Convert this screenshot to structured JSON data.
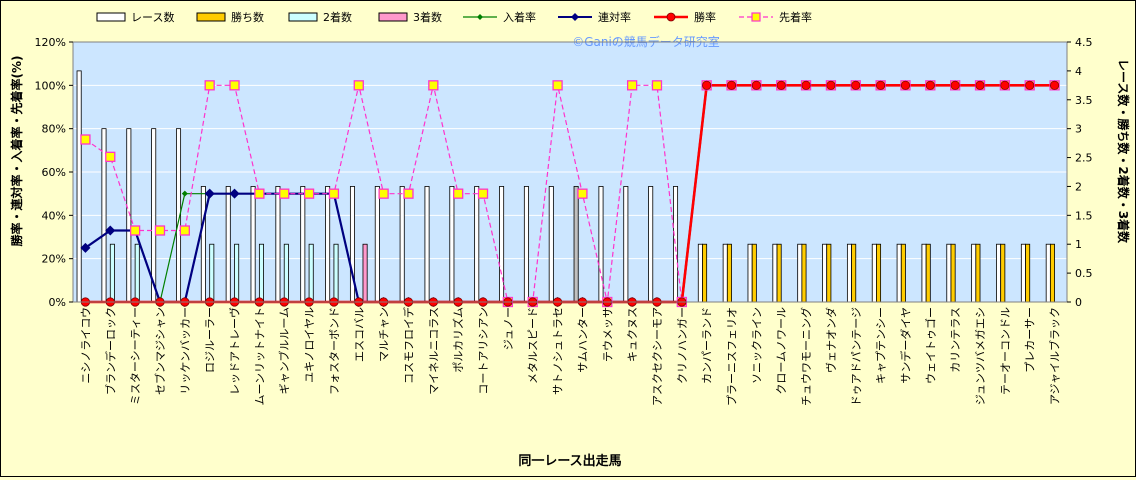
{
  "watermark": "©Ganiの競馬データ研究室",
  "chart_data": {
    "type": "bar",
    "xlabel": "同一レース出走馬",
    "ylabel_left": "勝率・連対率・入着率・先着率(%)",
    "ylabel_right": "レース数・勝ち数・2着数・3着数",
    "ylim_left": [
      0,
      120
    ],
    "ylim_right": [
      0,
      4.5
    ],
    "left_ticks": [
      "0%",
      "20%",
      "40%",
      "60%",
      "80%",
      "100%",
      "120%"
    ],
    "right_ticks": [
      "0",
      "0.5",
      "1",
      "1.5",
      "2",
      "2.5",
      "3",
      "3.5",
      "4",
      "4.5"
    ],
    "grid": true,
    "legend_position": "top",
    "categories": [
      "ニシノライコウ",
      "ブランデーロック",
      "ミスターシーティー",
      "セブンマジシャン",
      "リッケンバッカー",
      "ロジルーラー",
      "レッドアトレーヴ",
      "ムーンリットナイト",
      "ギャンブルルーム",
      "ユキノロイヤル",
      "フォスターボンド",
      "エスコバル",
      "マルチャン",
      "コスモフロイデ",
      "マイネルニコラス",
      "ポルカリズム",
      "コートアリシアン",
      "ジュノー",
      "メタルスピード",
      "サトノシュトラセ",
      "サムハンター",
      "テウメッサ",
      "キュクヌス",
      "アスクセクシーモア",
      "クリノハンガー",
      "カンパーランド",
      "プラーニスフェリオ",
      "ソニックライン",
      "クロームノワール",
      "チュウワモーニング",
      "ヴェナオンダ",
      "ドゥアドパンテージ",
      "キャプテンシー",
      "サンデーダイヤ",
      "ウェイトゥゴー",
      "カリンテラス",
      "ジュンツバメガエシ",
      "テーオーコンドル",
      "プレカーサー",
      "アジャイルブラック"
    ],
    "series": [
      {
        "name": "レース数",
        "axis": "right",
        "color": "#ffffff",
        "values": [
          4,
          3,
          3,
          3,
          3,
          2,
          2,
          2,
          2,
          2,
          2,
          2,
          2,
          2,
          2,
          2,
          2,
          2,
          2,
          2,
          2,
          2,
          2,
          2,
          2,
          1,
          1,
          1,
          1,
          1,
          1,
          1,
          1,
          1,
          1,
          1,
          1,
          1,
          1,
          1
        ]
      },
      {
        "name": "勝ち数",
        "axis": "right",
        "color": "#ffcc00",
        "values": [
          0,
          0,
          0,
          0,
          0,
          0,
          0,
          0,
          0,
          0,
          0,
          0,
          0,
          0,
          0,
          0,
          0,
          0,
          0,
          0,
          0,
          0,
          0,
          0,
          0,
          1,
          1,
          1,
          1,
          1,
          1,
          1,
          1,
          1,
          1,
          1,
          1,
          1,
          1,
          1
        ]
      },
      {
        "name": "2着数",
        "axis": "right",
        "color": "#ccffff",
        "values": [
          0,
          1,
          1,
          0,
          0,
          1,
          1,
          1,
          1,
          1,
          1,
          0,
          0,
          0,
          0,
          0,
          0,
          0,
          0,
          0,
          0,
          0,
          0,
          0,
          0,
          0,
          0,
          0,
          0,
          0,
          0,
          0,
          0,
          0,
          0,
          0,
          0,
          0,
          0,
          0
        ]
      },
      {
        "name": "3着数",
        "axis": "right",
        "color": "#ff99cc",
        "values": [
          0,
          0,
          0,
          0,
          0,
          0,
          0,
          0,
          0,
          0,
          0,
          1,
          0,
          0,
          0,
          0,
          0,
          0,
          0,
          0,
          0,
          0,
          0,
          0,
          0,
          0,
          0,
          0,
          0,
          0,
          0,
          0,
          0,
          0,
          0,
          0,
          0,
          0,
          0,
          0
        ]
      },
      {
        "name": "入着率",
        "axis": "left",
        "color": "#008000",
        "values": [
          25,
          33,
          33,
          0,
          50,
          50,
          50,
          50,
          50,
          50,
          50,
          0,
          0,
          0,
          0,
          0,
          0,
          0,
          0,
          0,
          0,
          0,
          0,
          0,
          0,
          100,
          100,
          100,
          100,
          100,
          100,
          100,
          100,
          100,
          100,
          100,
          100,
          100,
          100,
          100
        ]
      },
      {
        "name": "連対率",
        "axis": "left",
        "color": "#000080",
        "values": [
          25,
          33,
          33,
          0,
          0,
          50,
          50,
          50,
          50,
          50,
          50,
          0,
          0,
          0,
          0,
          0,
          0,
          0,
          0,
          0,
          0,
          0,
          0,
          0,
          0,
          100,
          100,
          100,
          100,
          100,
          100,
          100,
          100,
          100,
          100,
          100,
          100,
          100,
          100,
          100
        ]
      },
      {
        "name": "勝率",
        "axis": "left",
        "color": "#ff0000",
        "values": [
          0,
          0,
          0,
          0,
          0,
          0,
          0,
          0,
          0,
          0,
          0,
          0,
          0,
          0,
          0,
          0,
          0,
          0,
          0,
          0,
          0,
          0,
          0,
          0,
          0,
          100,
          100,
          100,
          100,
          100,
          100,
          100,
          100,
          100,
          100,
          100,
          100,
          100,
          100,
          100
        ]
      },
      {
        "name": "先着率",
        "axis": "left",
        "color": "#ff33cc",
        "values": [
          75,
          67,
          33,
          33,
          33,
          100,
          100,
          50,
          50,
          50,
          50,
          100,
          50,
          50,
          100,
          50,
          50,
          0,
          0,
          100,
          50,
          0,
          100,
          100,
          0,
          100,
          100,
          100,
          100,
          100,
          100,
          100,
          100,
          100,
          100,
          100,
          100,
          100,
          100,
          100
        ]
      }
    ]
  }
}
